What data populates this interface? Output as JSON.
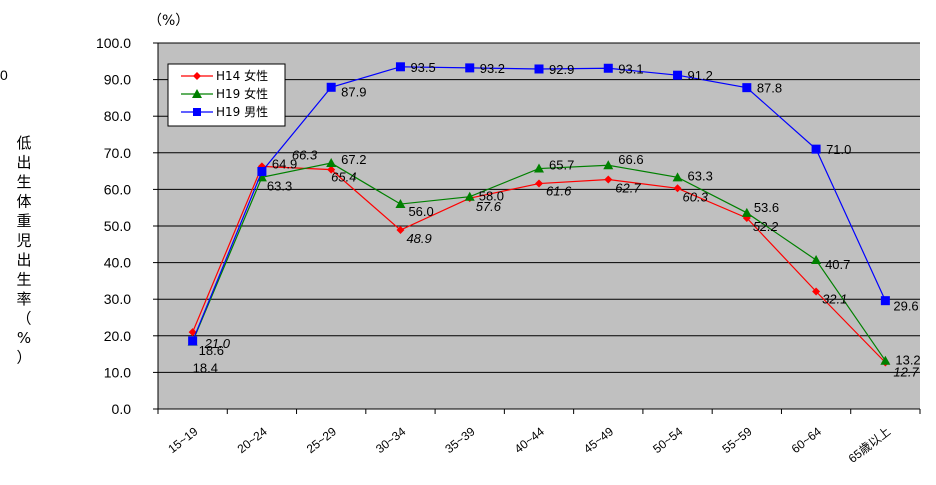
{
  "chart_data": {
    "type": "line",
    "unit_label": "（%）",
    "ylabel": "低出生体重児出生率（%）",
    "stray_text": "0",
    "ylim": [
      0,
      100
    ],
    "yticks": [
      "0.0",
      "10.0",
      "20.0",
      "30.0",
      "40.0",
      "50.0",
      "60.0",
      "70.0",
      "80.0",
      "90.0",
      "100.0"
    ],
    "categories": [
      "15~19",
      "20~24",
      "25~29",
      "30~34",
      "35~39",
      "40~44",
      "45~49",
      "50~54",
      "55~59",
      "60~64",
      "65歳以上"
    ],
    "grid": true,
    "legend_position": "top-left",
    "series": [
      {
        "name": "H14 女性",
        "color": "#ff0000",
        "marker": "diamond",
        "values": [
          21.0,
          66.3,
          65.4,
          48.9,
          57.6,
          61.6,
          62.7,
          60.3,
          52.2,
          32.1,
          12.7
        ],
        "labels": [
          "21.0",
          "66.3",
          "65.4",
          "48.9",
          "57.6",
          "61.6",
          "62.7",
          "60.3",
          "52.2",
          "32.1",
          "12.7"
        ]
      },
      {
        "name": "H19 女性",
        "color": "#008000",
        "marker": "triangle",
        "values": [
          18.4,
          63.3,
          67.2,
          56.0,
          58.0,
          65.7,
          66.6,
          63.3,
          53.6,
          40.7,
          13.2
        ],
        "labels": [
          "18.4",
          "63.3",
          "67.2",
          "56.0",
          "58.0",
          "65.7",
          "66.6",
          "63.3",
          "53.6",
          "40.7",
          "13.2"
        ]
      },
      {
        "name": "H19 男性",
        "color": "#0000ff",
        "marker": "square",
        "values": [
          18.6,
          64.9,
          87.9,
          93.5,
          93.2,
          92.9,
          93.1,
          91.2,
          87.8,
          71.0,
          29.6
        ],
        "labels": [
          "18.6",
          "64.9",
          "87.9",
          "93.5",
          "93.2",
          "92.9",
          "93.1",
          "91.2",
          "87.8",
          "71.0",
          "29.6"
        ]
      }
    ]
  }
}
